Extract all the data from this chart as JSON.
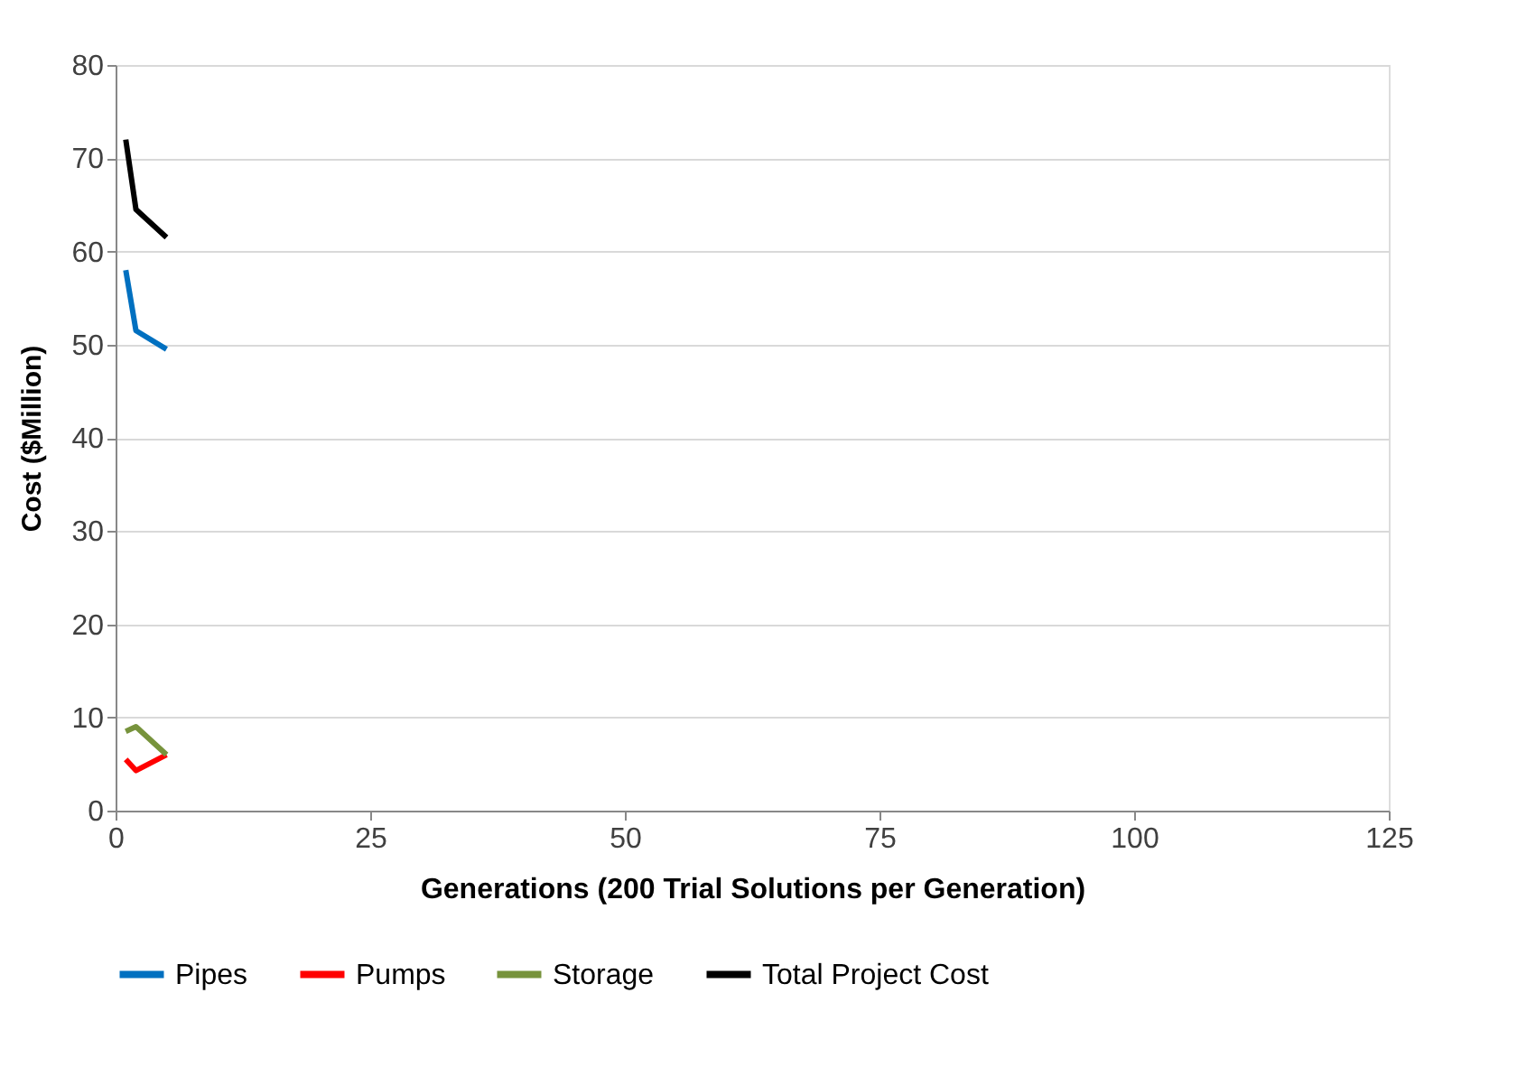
{
  "chart_data": {
    "type": "line",
    "xlabel": "Generations (200 Trial Solutions per Generation)",
    "ylabel": "Cost ($Million)",
    "xlim": [
      0,
      125
    ],
    "xticks": [
      0,
      25,
      50,
      75,
      100,
      125
    ],
    "ylim": [
      0,
      80
    ],
    "yticks": [
      0,
      10,
      20,
      30,
      40,
      50,
      60,
      70,
      80
    ],
    "grid": "y",
    "legend": "bottom",
    "marker": "none",
    "line_style": "solid",
    "series": [
      {
        "name": "Pipes",
        "color": "#0070c0",
        "x": [
          1,
          2,
          5
        ],
        "values": [
          58,
          51.5,
          49.5
        ]
      },
      {
        "name": "Pumps",
        "color": "#ff0000",
        "x": [
          1,
          2,
          5
        ],
        "values": [
          5.5,
          4.3,
          6
        ]
      },
      {
        "name": "Storage",
        "color": "#77933c",
        "x": [
          1,
          2,
          5
        ],
        "values": [
          8.5,
          9,
          6
        ]
      },
      {
        "name": "Total Project Cost",
        "color": "#000000",
        "x": [
          1,
          2,
          5
        ],
        "values": [
          72,
          64.5,
          61.5
        ]
      }
    ]
  }
}
